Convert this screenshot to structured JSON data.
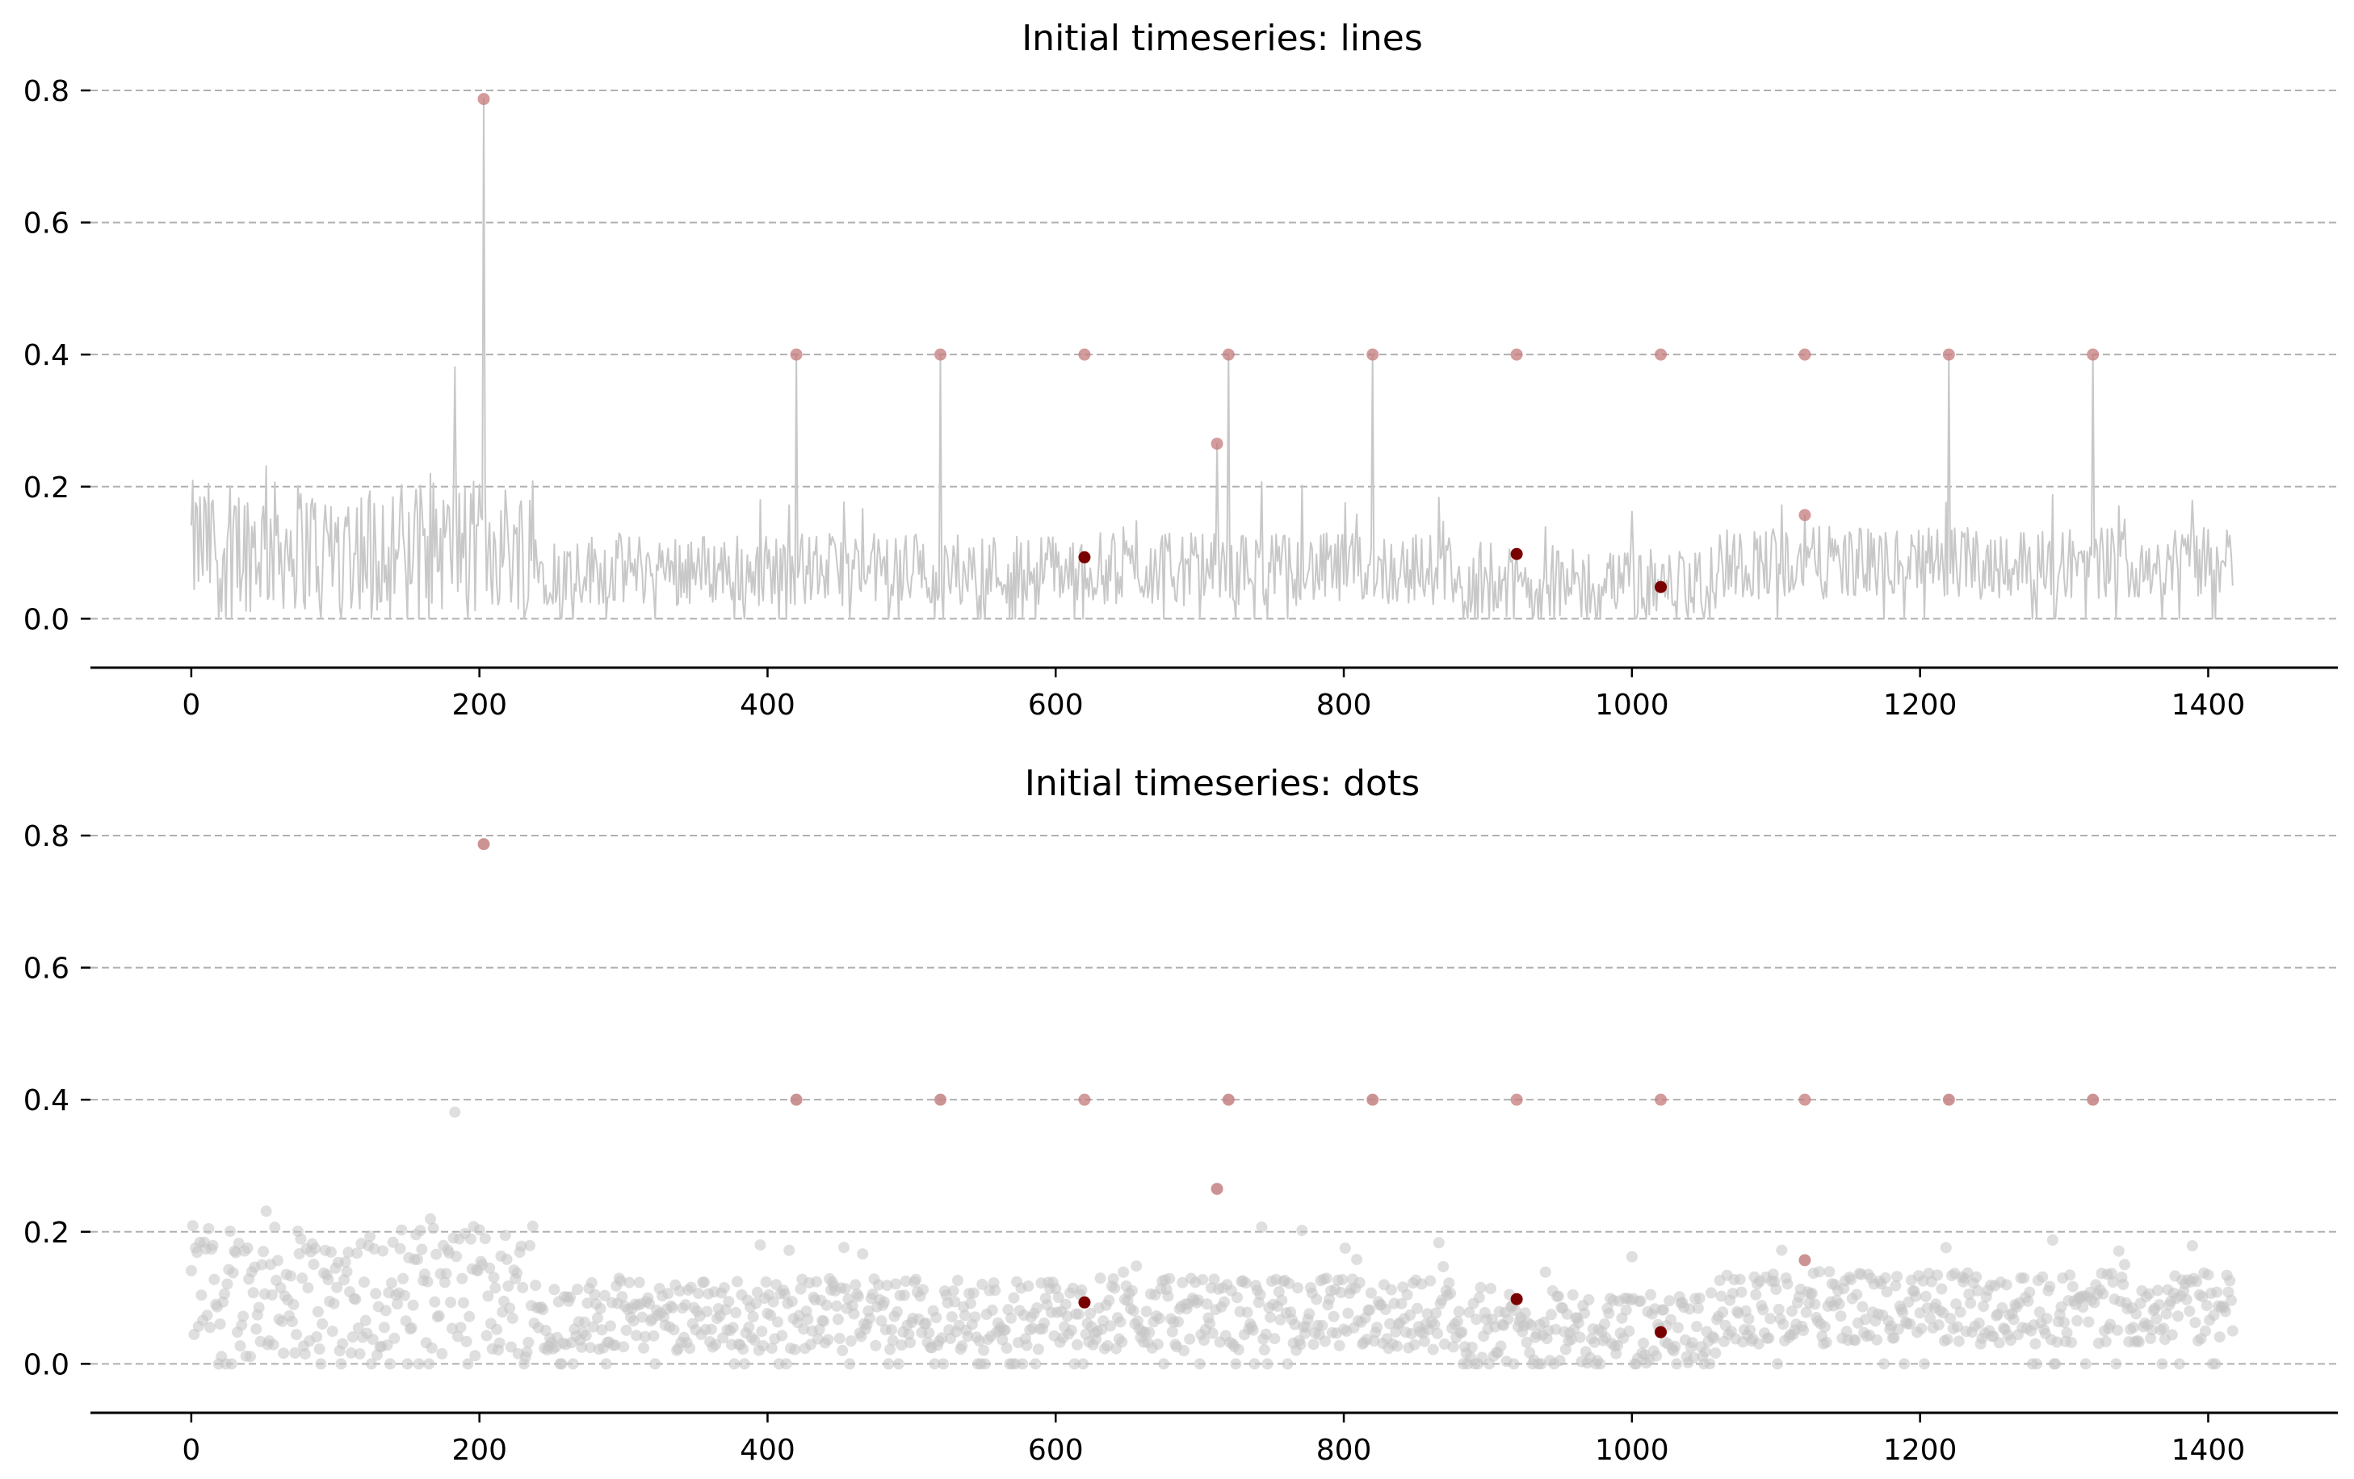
{
  "colors": {
    "series": "#c4c4c4",
    "anomaly_light": "#c47a7a",
    "anomaly_dark": "#7a0000",
    "grid": "#b0b0b0",
    "axis": "#000000"
  },
  "chart_data": [
    {
      "type": "line",
      "title": "Initial timeseries: lines",
      "xlabel": "",
      "ylabel": "",
      "xlim": [
        -70,
        1490
      ],
      "ylim": [
        -0.035,
        0.8
      ],
      "xticks": [
        0,
        200,
        400,
        600,
        800,
        1000,
        1200,
        1400
      ],
      "xtick_labels": [
        "0",
        "200",
        "400",
        "600",
        "800",
        "1000",
        "1200",
        "1400"
      ],
      "yticks": [
        0.0,
        0.2,
        0.4,
        0.6,
        0.8
      ],
      "ytick_labels": [
        "0.0",
        "0.2",
        "0.4",
        "0.6",
        "0.8"
      ],
      "grid": "horizontal dashed",
      "series_length": 1418,
      "highlighted_points": [
        {
          "x": 203,
          "y": 0.787,
          "style": "light"
        },
        {
          "x": 420,
          "y": 0.4,
          "style": "light"
        },
        {
          "x": 520,
          "y": 0.4,
          "style": "light"
        },
        {
          "x": 620,
          "y": 0.4,
          "style": "light"
        },
        {
          "x": 720,
          "y": 0.4,
          "style": "light"
        },
        {
          "x": 820,
          "y": 0.4,
          "style": "light"
        },
        {
          "x": 920,
          "y": 0.4,
          "style": "light"
        },
        {
          "x": 1020,
          "y": 0.4,
          "style": "light"
        },
        {
          "x": 1120,
          "y": 0.4,
          "style": "light"
        },
        {
          "x": 1220,
          "y": 0.4,
          "style": "light"
        },
        {
          "x": 1320,
          "y": 0.4,
          "style": "light"
        },
        {
          "x": 712,
          "y": 0.265,
          "style": "light"
        },
        {
          "x": 1120,
          "y": 0.157,
          "style": "light"
        },
        {
          "x": 620,
          "y": 0.093,
          "style": "dark"
        },
        {
          "x": 920,
          "y": 0.098,
          "style": "dark"
        },
        {
          "x": 1020,
          "y": 0.048,
          "style": "dark"
        }
      ]
    },
    {
      "type": "scatter",
      "title": "Initial timeseries: dots",
      "xlabel": "",
      "ylabel": "",
      "xlim": [
        -70,
        1490
      ],
      "ylim": [
        -0.035,
        0.8
      ],
      "xticks": [
        0,
        200,
        400,
        600,
        800,
        1000,
        1200,
        1400
      ],
      "xtick_labels": [
        "0",
        "200",
        "400",
        "600",
        "800",
        "1000",
        "1200",
        "1400"
      ],
      "yticks": [
        0.0,
        0.2,
        0.4,
        0.6,
        0.8
      ],
      "ytick_labels": [
        "0.0",
        "0.2",
        "0.4",
        "0.6",
        "0.8"
      ],
      "grid": "horizontal dashed",
      "series_length": 1418,
      "highlighted_points": [
        {
          "x": 203,
          "y": 0.787,
          "style": "light"
        },
        {
          "x": 420,
          "y": 0.4,
          "style": "light"
        },
        {
          "x": 520,
          "y": 0.4,
          "style": "light"
        },
        {
          "x": 620,
          "y": 0.4,
          "style": "light"
        },
        {
          "x": 720,
          "y": 0.4,
          "style": "light"
        },
        {
          "x": 820,
          "y": 0.4,
          "style": "light"
        },
        {
          "x": 920,
          "y": 0.4,
          "style": "light"
        },
        {
          "x": 1020,
          "y": 0.4,
          "style": "light"
        },
        {
          "x": 1120,
          "y": 0.4,
          "style": "light"
        },
        {
          "x": 1220,
          "y": 0.4,
          "style": "light"
        },
        {
          "x": 1320,
          "y": 0.4,
          "style": "light"
        },
        {
          "x": 712,
          "y": 0.265,
          "style": "light"
        },
        {
          "x": 1120,
          "y": 0.157,
          "style": "light"
        },
        {
          "x": 620,
          "y": 0.093,
          "style": "dark"
        },
        {
          "x": 920,
          "y": 0.098,
          "style": "dark"
        },
        {
          "x": 1020,
          "y": 0.048,
          "style": "dark"
        }
      ]
    }
  ]
}
